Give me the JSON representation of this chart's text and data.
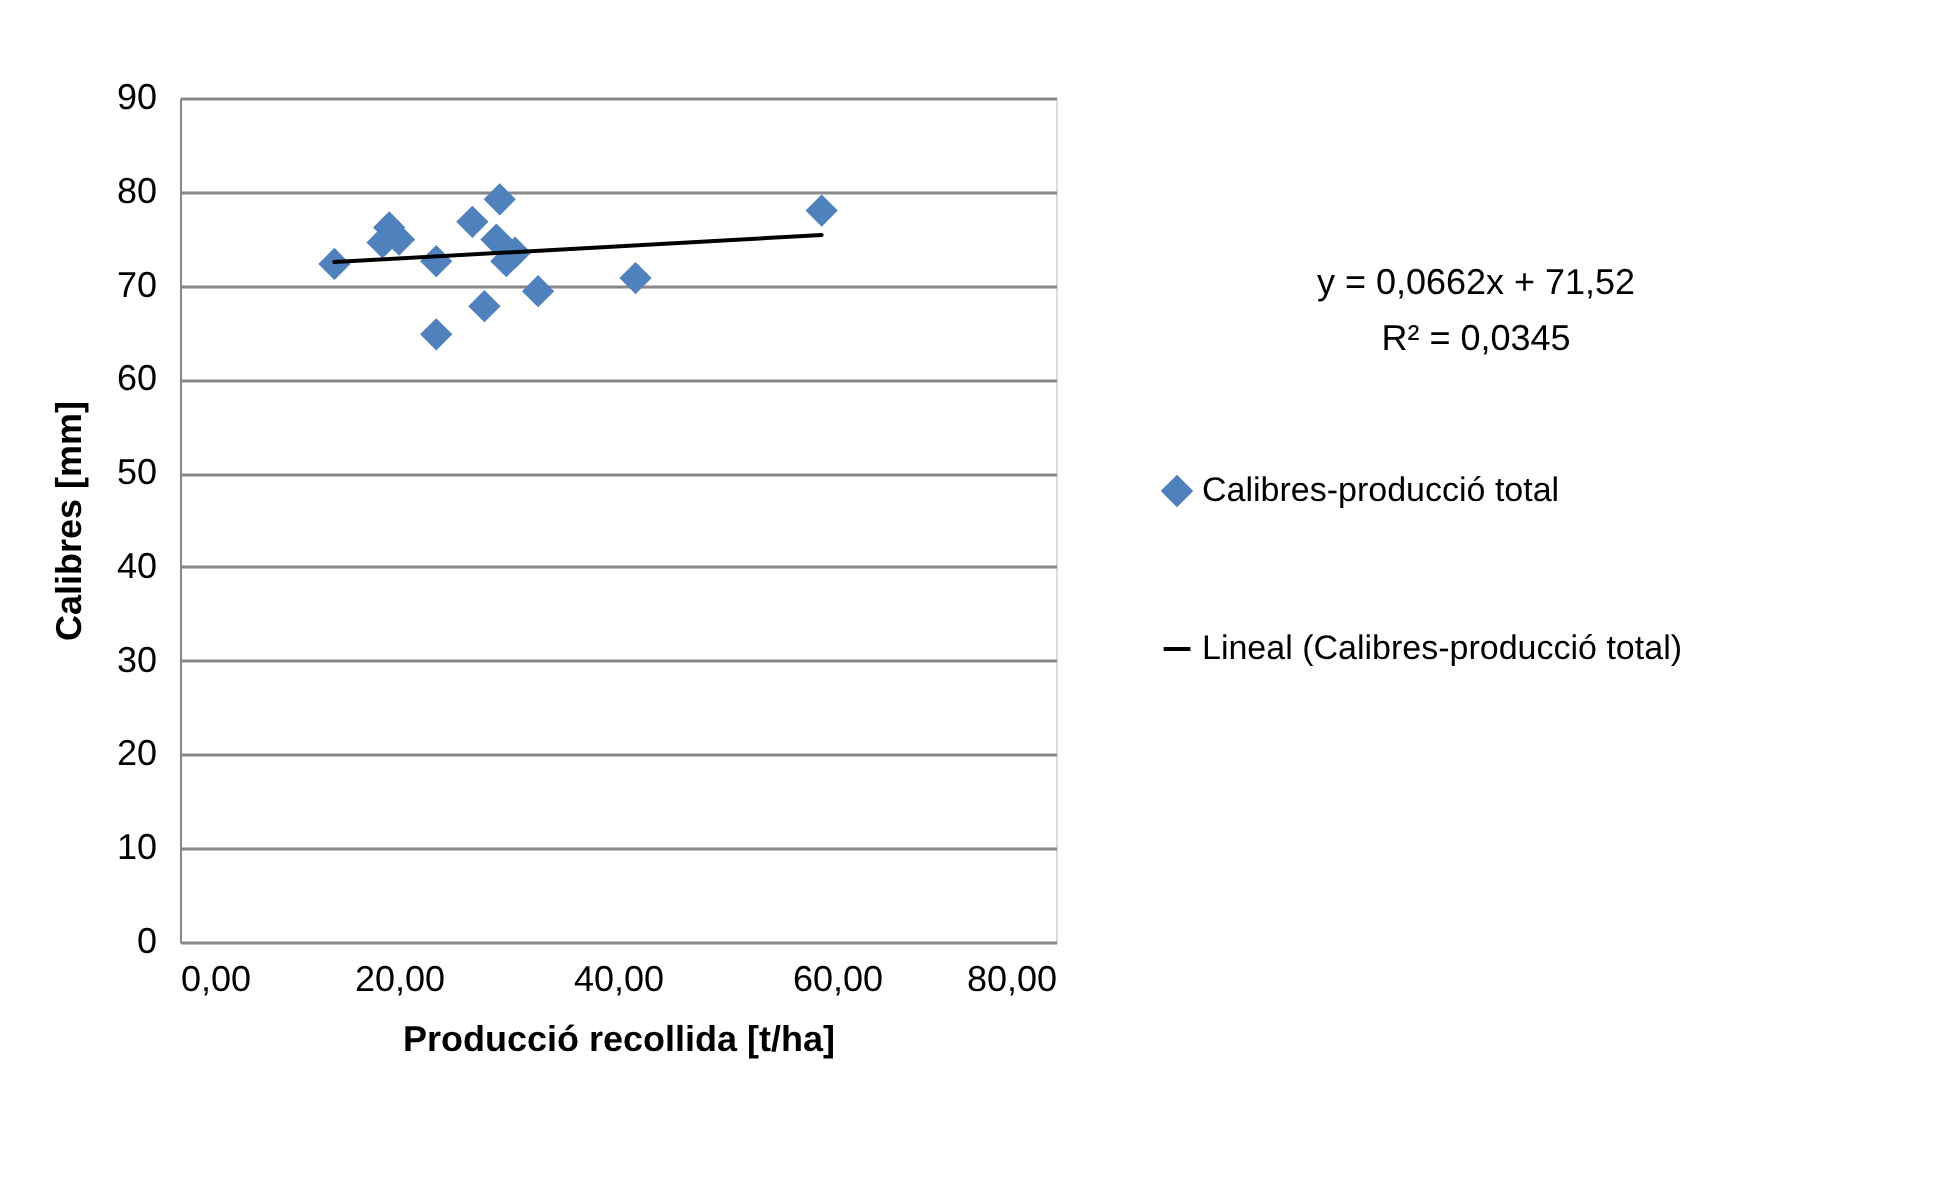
{
  "chart_data": {
    "type": "scatter",
    "xlabel": "Producció recollida [t/ha]",
    "ylabel": "Calibres [mm]",
    "xlim": [
      0,
      80
    ],
    "xticks": [
      {
        "value": 0,
        "label": "0,00"
      },
      {
        "value": 20,
        "label": "20,00"
      },
      {
        "value": 40,
        "label": "40,00"
      },
      {
        "value": 60,
        "label": "60,00"
      },
      {
        "value": 80,
        "label": "80,00"
      }
    ],
    "ylim": [
      0,
      90
    ],
    "yticks": [
      0,
      10,
      20,
      30,
      40,
      50,
      60,
      70,
      80,
      90
    ],
    "grid": "y",
    "legend": "right",
    "annotations": [
      "y = 0,0662x + 71,52",
      "R² = 0,0345"
    ],
    "series": [
      {
        "name": "Calibres-producció total",
        "color": "#4f81bd",
        "marker": "diamond",
        "x": [
          14.1,
          18.5,
          19.1,
          20.0,
          23.4,
          23.4,
          26.7,
          27.8,
          29.2,
          28.9,
          29.8,
          30.6,
          32.7,
          41.6,
          58.6
        ],
        "values": [
          72.3,
          74.6,
          76.2,
          74.9,
          72.6,
          64.8,
          76.8,
          67.8,
          79.2,
          74.9,
          72.6,
          73.5,
          69.4,
          70.8,
          78.0
        ]
      },
      {
        "name": "Lineal (Calibres-producció total)",
        "color": "#000000",
        "type": "line",
        "marker": "none",
        "x": [
          14.1,
          58.6
        ],
        "values": [
          72.5,
          75.4
        ]
      }
    ]
  }
}
